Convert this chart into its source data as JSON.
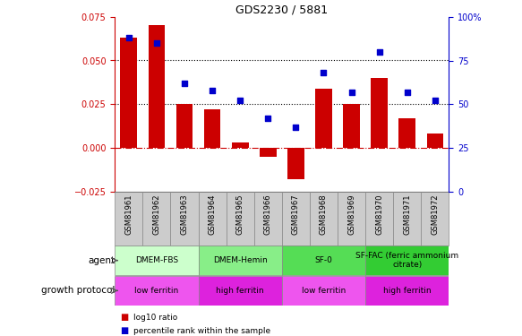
{
  "title": "GDS2230 / 5881",
  "samples": [
    "GSM81961",
    "GSM81962",
    "GSM81963",
    "GSM81964",
    "GSM81965",
    "GSM81966",
    "GSM81967",
    "GSM81968",
    "GSM81969",
    "GSM81970",
    "GSM81971",
    "GSM81972"
  ],
  "log10_ratio": [
    0.063,
    0.07,
    0.025,
    0.022,
    0.003,
    -0.005,
    -0.018,
    0.034,
    0.025,
    0.04,
    0.017,
    0.008
  ],
  "percentile_rank": [
    88,
    85,
    62,
    58,
    52,
    42,
    37,
    68,
    57,
    80,
    57,
    52
  ],
  "bar_color": "#cc0000",
  "dot_color": "#0000cc",
  "ylim_left": [
    -0.025,
    0.075
  ],
  "ylim_right": [
    0,
    100
  ],
  "yticks_left": [
    -0.025,
    0,
    0.025,
    0.05,
    0.075
  ],
  "yticks_right": [
    0,
    25,
    50,
    75,
    100
  ],
  "ytick_right_labels": [
    "0",
    "25",
    "50",
    "75",
    "100%"
  ],
  "hlines": [
    0.025,
    0.05
  ],
  "zero_line": 0,
  "agent_groups": [
    {
      "label": "DMEM-FBS",
      "start": 0,
      "end": 3,
      "color": "#ccffcc"
    },
    {
      "label": "DMEM-Hemin",
      "start": 3,
      "end": 6,
      "color": "#88ee88"
    },
    {
      "label": "SF-0",
      "start": 6,
      "end": 9,
      "color": "#55dd55"
    },
    {
      "label": "SF-FAC (ferric ammonium\ncitrate)",
      "start": 9,
      "end": 12,
      "color": "#33cc33"
    }
  ],
  "protocol_groups": [
    {
      "label": "low ferritin",
      "start": 0,
      "end": 3,
      "color": "#ee55ee"
    },
    {
      "label": "high ferritin",
      "start": 3,
      "end": 6,
      "color": "#dd22dd"
    },
    {
      "label": "low ferritin",
      "start": 6,
      "end": 9,
      "color": "#ee55ee"
    },
    {
      "label": "high ferritin",
      "start": 9,
      "end": 12,
      "color": "#dd22dd"
    }
  ],
  "agent_label": "agent",
  "protocol_label": "growth protocol",
  "legend_bar_label": "log10 ratio",
  "legend_dot_label": "percentile rank within the sample",
  "tick_bg_color": "#cccccc"
}
